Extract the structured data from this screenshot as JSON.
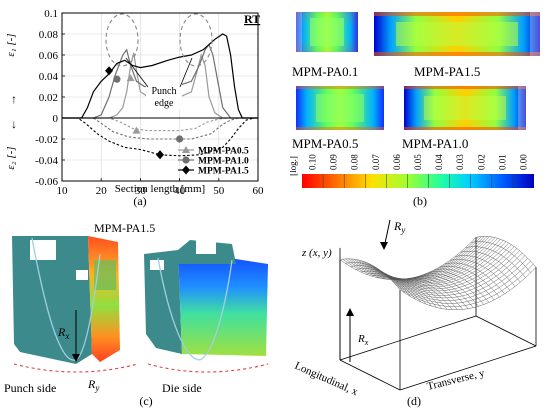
{
  "panels": {
    "a": {
      "caption": "(a)",
      "tag": "RT",
      "annotation": "Punch edge",
      "chart_data": {
        "type": "line",
        "xlabel": "Section length [mm]",
        "ylabel_top": "ε₁ [-]",
        "ylabel_bottom": "ε₂ [-]",
        "xlim": [
          10,
          60
        ],
        "ylim": [
          -0.06,
          0.1
        ],
        "x_ticks": [
          "10",
          "20",
          "30",
          "40",
          "50",
          "60"
        ],
        "y_ticks": [
          "0.1",
          "0.08",
          "0.06",
          "0.04",
          "0.02",
          "0",
          "-0.02",
          "-0.04",
          "-0.06"
        ],
        "legend": [
          "MPM-PA0.5",
          "MPM-PA1.0",
          "MPM-PA1.5"
        ],
        "series": [
          {
            "name": "MPM-PA0.5",
            "color": "#9a9a9a",
            "marker": "triangle",
            "e1": [
              [
                10,
                0
              ],
              [
                20,
                0
              ],
              [
                22,
                0
              ],
              [
                24,
                0.003
              ],
              [
                25.5,
                0.01
              ],
              [
                26.5,
                0.025
              ],
              [
                27.5,
                0.05
              ],
              [
                28.3,
                0.062
              ],
              [
                29,
                0.045
              ],
              [
                30,
                0.025
              ],
              [
                32,
                0.02
              ],
              [
                36,
                0.02
              ],
              [
                40,
                0.02
              ],
              [
                43,
                0.025
              ],
              [
                44.5,
                0.045
              ],
              [
                45.5,
                0.06
              ],
              [
                46.5,
                0.05
              ],
              [
                47.5,
                0.02
              ],
              [
                49,
                0.005
              ],
              [
                51,
                0
              ],
              [
                60,
                0
              ]
            ],
            "e2": [
              [
                10,
                0
              ],
              [
                22,
                0
              ],
              [
                25,
                -0.004
              ],
              [
                28,
                -0.01
              ],
              [
                32,
                -0.012
              ],
              [
                36,
                -0.012
              ],
              [
                40,
                -0.012
              ],
              [
                44,
                -0.01
              ],
              [
                47,
                -0.004
              ],
              [
                50,
                -0.001
              ],
              [
                52,
                0
              ],
              [
                60,
                0
              ]
            ],
            "marker_points": [
              [
                27.5,
                0.038
              ],
              [
                29,
                -0.012
              ]
            ]
          },
          {
            "name": "MPM-PA1.0",
            "color": "#707070",
            "marker": "circle",
            "e1": [
              [
                10,
                0
              ],
              [
                18,
                0
              ],
              [
                20,
                0.003
              ],
              [
                22,
                0.02
              ],
              [
                23.5,
                0.04
              ],
              [
                24.5,
                0.05
              ],
              [
                25.5,
                0.06
              ],
              [
                26.5,
                0.065
              ],
              [
                27.5,
                0.05
              ],
              [
                29,
                0.035
              ],
              [
                31,
                0.03
              ],
              [
                35,
                0.03
              ],
              [
                39,
                0.03
              ],
              [
                43,
                0.035
              ],
              [
                45,
                0.05
              ],
              [
                46.5,
                0.065
              ],
              [
                47.5,
                0.07
              ],
              [
                48.5,
                0.06
              ],
              [
                49.5,
                0.04
              ],
              [
                51,
                0.01
              ],
              [
                53,
                0
              ],
              [
                60,
                0
              ]
            ],
            "e2": [
              [
                10,
                0
              ],
              [
                18,
                0
              ],
              [
                20,
                -0.005
              ],
              [
                23,
                -0.013
              ],
              [
                27,
                -0.018
              ],
              [
                32,
                -0.02
              ],
              [
                38,
                -0.02
              ],
              [
                43,
                -0.02
              ],
              [
                48,
                -0.015
              ],
              [
                51,
                -0.006
              ],
              [
                53,
                -0.002
              ],
              [
                55,
                0
              ],
              [
                60,
                0
              ]
            ],
            "marker_points": [
              [
                24,
                0.037
              ],
              [
                40,
                -0.02
              ]
            ]
          },
          {
            "name": "MPM-PA1.5",
            "color": "#000000",
            "marker": "diamond",
            "e1": [
              [
                10,
                0
              ],
              [
                15,
                0
              ],
              [
                16.5,
                0.01
              ],
              [
                18,
                0.025
              ],
              [
                20,
                0.035
              ],
              [
                22,
                0.042
              ],
              [
                24,
                0.052
              ],
              [
                26,
                0.055
              ],
              [
                28,
                0.05
              ],
              [
                30,
                0.048
              ],
              [
                33,
                0.05
              ],
              [
                37,
                0.055
              ],
              [
                40,
                0.058
              ],
              [
                43,
                0.06
              ],
              [
                46,
                0.065
              ],
              [
                49,
                0.075
              ],
              [
                51,
                0.08
              ],
              [
                52,
                0.078
              ],
              [
                53,
                0.06
              ],
              [
                54,
                0.03
              ],
              [
                55,
                0.008
              ],
              [
                56,
                0
              ],
              [
                60,
                0
              ]
            ],
            "e2": [
              [
                10,
                0
              ],
              [
                14,
                0
              ],
              [
                16,
                -0.005
              ],
              [
                19,
                -0.015
              ],
              [
                22,
                -0.022
              ],
              [
                26,
                -0.028
              ],
              [
                30,
                -0.03
              ],
              [
                35,
                -0.035
              ],
              [
                40,
                -0.036
              ],
              [
                45,
                -0.035
              ],
              [
                48,
                -0.032
              ],
              [
                51,
                -0.028
              ],
              [
                53,
                -0.02
              ],
              [
                55,
                -0.01
              ],
              [
                57,
                -0.002
              ],
              [
                59,
                0
              ],
              [
                60,
                0
              ]
            ],
            "marker_points": [
              [
                22,
                0.045
              ],
              [
                35,
                -0.035
              ]
            ]
          }
        ]
      }
    },
    "b": {
      "caption": "(b)",
      "labels": [
        "MPM-PA0.1",
        "MPM-PA1.5",
        "MPM-PA0.5",
        "MPM-PA1.0"
      ],
      "colorbar_title": "[log.]",
      "colorbar_ticks": [
        "0.10",
        "0.09",
        "0.08",
        "0.07",
        "0.06",
        "0.05",
        "0.04",
        "0.03",
        "0.02",
        "0.01",
        "0.00"
      ],
      "colorbar_colors": [
        "#ff0000",
        "#ff6000",
        "#ffb000",
        "#f0f000",
        "#a0ff30",
        "#30ff70",
        "#00ffd0",
        "#00c0ff",
        "#0080ff",
        "#0030ff",
        "#0000c0"
      ]
    },
    "c": {
      "caption": "(c)",
      "title": "MPM-PA1.5",
      "label_rx": "R",
      "label_rx_sub": "x",
      "label_ry": "R",
      "label_ry_sub": "y",
      "punch_side": "Punch side",
      "die_side": "Die side"
    },
    "d": {
      "caption": "(d)",
      "z_label": "z (x, y)",
      "label_ry": "R",
      "label_ry_sub": "y",
      "label_rx": "R",
      "label_rx_sub": "x",
      "axis_longitudinal": "Longitudinal, x",
      "axis_transverse": "Transverse, y"
    }
  }
}
